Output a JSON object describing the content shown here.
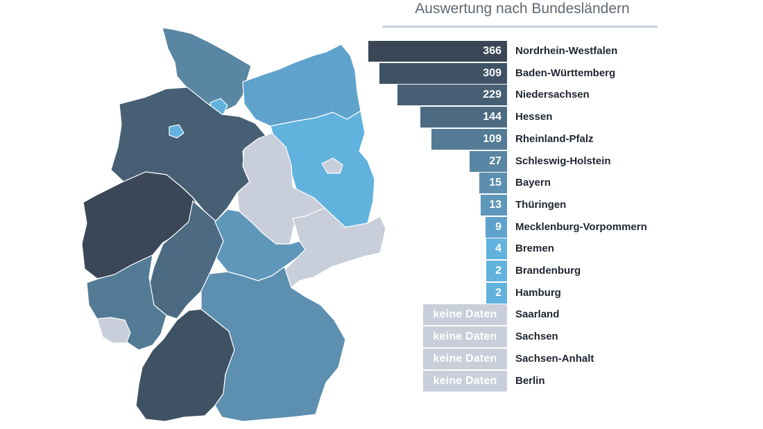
{
  "chart_data": {
    "type": "bar",
    "title": "Auswertung nach Bundesländern",
    "no_data_label": "keine Daten",
    "categories": [
      "Nordrhein-Westfalen",
      "Baden-Württemberg",
      "Niedersachsen",
      "Hessen",
      "Rheinland-Pfalz",
      "Schleswig-Holstein",
      "Bayern",
      "Thüringen",
      "Mecklenburg-Vorpommern",
      "Bremen",
      "Brandenburg",
      "Hamburg",
      "Saarland",
      "Sachsen",
      "Sachsen-Anhalt",
      "Berlin"
    ],
    "values": [
      366,
      309,
      229,
      144,
      109,
      27,
      15,
      13,
      9,
      4,
      2,
      2,
      null,
      null,
      null,
      null
    ],
    "colors": [
      "#3b4756",
      "#3e5264",
      "#465f74",
      "#4c6b83",
      "#537b95",
      "#5986a3",
      "#5c8fb0",
      "#5e97b9",
      "#5fa3cd",
      "#62b2de",
      "#62b2de",
      "#62b2de",
      "#c8cfda",
      "#c8cfda",
      "#c8cfda",
      "#c8cfda"
    ]
  },
  "map": {
    "Schleswig-Holstein": "#5986a3",
    "Hamburg": "#62b2de",
    "Mecklenburg-Vorpommern": "#5fa3cd",
    "Bremen": "#62b2de",
    "Niedersachsen": "#465f74",
    "Brandenburg": "#62b2de",
    "Berlin": "#c8cfda",
    "Sachsen-Anhalt": "#c8cfda",
    "Nordrhein-Westfalen": "#3b4756",
    "Hessen": "#4c6b83",
    "Thüringen": "#5e97b9",
    "Sachsen": "#c8cfda",
    "Rheinland-Pfalz": "#537b95",
    "Saarland": "#c8cfda",
    "Baden-Württemberg": "#3e5264",
    "Bayern": "#5c8fb0"
  }
}
